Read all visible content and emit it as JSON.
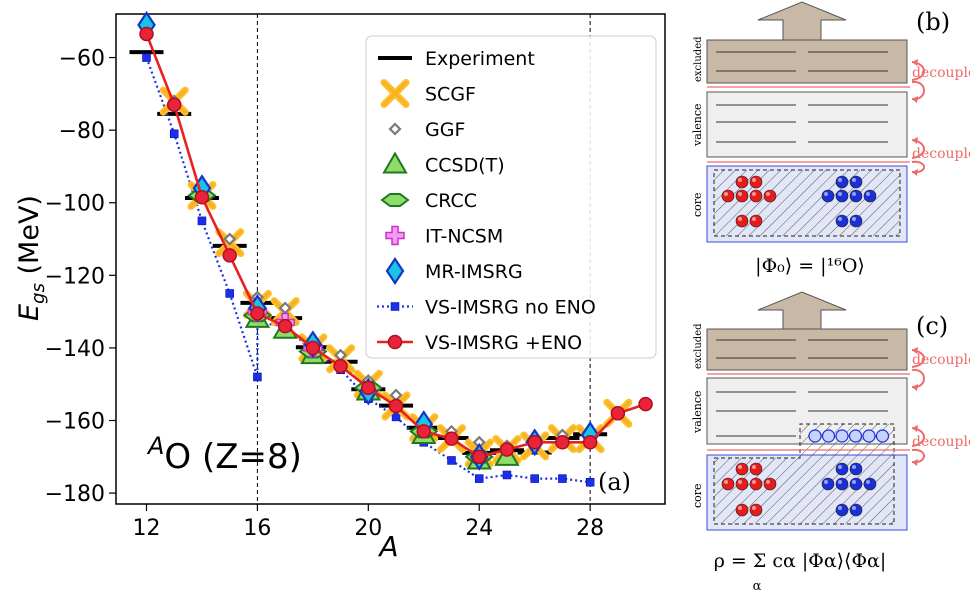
{
  "chart_data": {
    "type": "line",
    "xlabel": "A",
    "ylabel": "E",
    "ylabel_sub": "gs",
    "ylabel_unit": " (MeV)",
    "xlim": [
      10.9,
      30.7
    ],
    "ylim": [
      -183,
      -48
    ],
    "xticks": [
      12,
      16,
      20,
      24,
      28
    ],
    "yticks": [
      -60,
      -80,
      -100,
      -120,
      -140,
      -160,
      -180
    ],
    "vlines": [
      16,
      28
    ],
    "panel_label": "(a)",
    "annotation": "O (Z=8)",
    "annotation_sup": "A",
    "legend_placement": "top-right",
    "series": [
      {
        "name": "Experiment",
        "style": "bar",
        "color": "#000000",
        "x": [
          12,
          13,
          14,
          15,
          16,
          17,
          18,
          19,
          20,
          21,
          22,
          23,
          24,
          25,
          26,
          27,
          28
        ],
        "y": [
          -58.5,
          -75.5,
          -98.7,
          -111.9,
          -127.6,
          -131.8,
          -139.8,
          -143.8,
          -151.4,
          -155.9,
          -162.0,
          -164.8,
          -168.9,
          -168.2,
          -168.8,
          -164.8,
          -163.8
        ]
      },
      {
        "name": "SCGF",
        "style": "cross",
        "color": "#f5a623",
        "x": [
          13,
          14,
          15,
          16,
          17,
          18,
          19,
          20,
          21,
          22,
          23,
          24,
          25,
          26,
          27,
          28,
          29
        ],
        "y": [
          -72,
          -98,
          -111,
          -128,
          -130,
          -140,
          -143,
          -150,
          -156,
          -162,
          -165,
          -169,
          -168,
          -167,
          -165,
          -165,
          -158
        ]
      },
      {
        "name": "GGF",
        "style": "diamond-small",
        "color": "#7a7a7a",
        "x": [
          13,
          14,
          15,
          16,
          17,
          18,
          19,
          20,
          21,
          22,
          23,
          24,
          25,
          26,
          27,
          28
        ],
        "y": [
          -72,
          -97,
          -110,
          -126,
          -129,
          -138,
          -142,
          -149,
          -153,
          -160,
          -163,
          -166,
          -167,
          -166,
          -164,
          -163
        ]
      },
      {
        "name": "CCSD(T)",
        "style": "triangle",
        "color": "#2e9e2e",
        "x": [
          16,
          17,
          18,
          20,
          22,
          24,
          25
        ],
        "y": [
          -132,
          -135,
          -142,
          -152,
          -164,
          -171,
          -170
        ]
      },
      {
        "name": "CRCC",
        "style": "hexdiamond",
        "color": "#2e9e2e",
        "x": [
          14,
          16,
          18,
          20,
          22,
          24
        ],
        "y": [
          -98,
          -131,
          -141,
          -151,
          -163,
          -170
        ]
      },
      {
        "name": "IT-NCSM",
        "style": "plus",
        "color": "#e04be0",
        "x": [
          16,
          17,
          18
        ],
        "y": [
          -130,
          -133,
          -140
        ]
      },
      {
        "name": "MR-IMSRG",
        "style": "diamond",
        "color": "#1a6fd8",
        "x": [
          12,
          14,
          16,
          18,
          20,
          22,
          24,
          26,
          28
        ],
        "y": [
          -51,
          -96,
          -129,
          -139,
          -152,
          -161,
          -170,
          -166,
          -164
        ]
      },
      {
        "name": "VS-IMSRG no ENO",
        "style": "blue-dotted",
        "color": "#0000dd",
        "x": [
          12,
          13,
          14,
          15,
          16,
          16,
          17,
          18,
          19,
          20,
          21,
          22,
          23,
          24,
          25,
          26,
          27,
          28
        ],
        "y": [
          -60,
          -81,
          -105,
          -125,
          -148,
          -133,
          -134,
          -141,
          -146,
          -154,
          -159,
          -166,
          -171,
          -176,
          -175,
          -176,
          -176,
          -177
        ]
      },
      {
        "name": "VS-IMSRG +ENO",
        "style": "red-line",
        "color": "#e02020",
        "x": [
          12,
          13,
          14,
          15,
          16,
          17,
          18,
          19,
          20,
          21,
          22,
          23,
          24,
          25,
          26,
          27,
          28,
          29,
          30
        ],
        "y": [
          -53.5,
          -73,
          -98.5,
          -114.5,
          -130.5,
          -134,
          -140,
          -145,
          -151,
          -156,
          -163,
          -165,
          -170,
          -168,
          -166,
          -166,
          -166,
          -158,
          -155.5
        ]
      }
    ]
  },
  "diagram": {
    "panel_b_label": "(b)",
    "panel_c_label": "(c)",
    "shell_labels": {
      "excluded": "excluded",
      "valence": "valence",
      "core": "core"
    },
    "decouple_label": "decouple",
    "formula_b": "|Φ₀⟩ = |¹⁶O⟩",
    "formula_c": "ρ = Σ cα |Φα⟩⟨Φα|",
    "formula_c_sum_index": "α",
    "colors": {
      "excluded": "#c8b8a6",
      "valence": "#efefef",
      "core": "#e3e6f7",
      "proton": "#e81b1b",
      "neutron": "#1a2fd8",
      "decouple": "#f06a6a",
      "arrow": "#c8b8a6"
    }
  }
}
